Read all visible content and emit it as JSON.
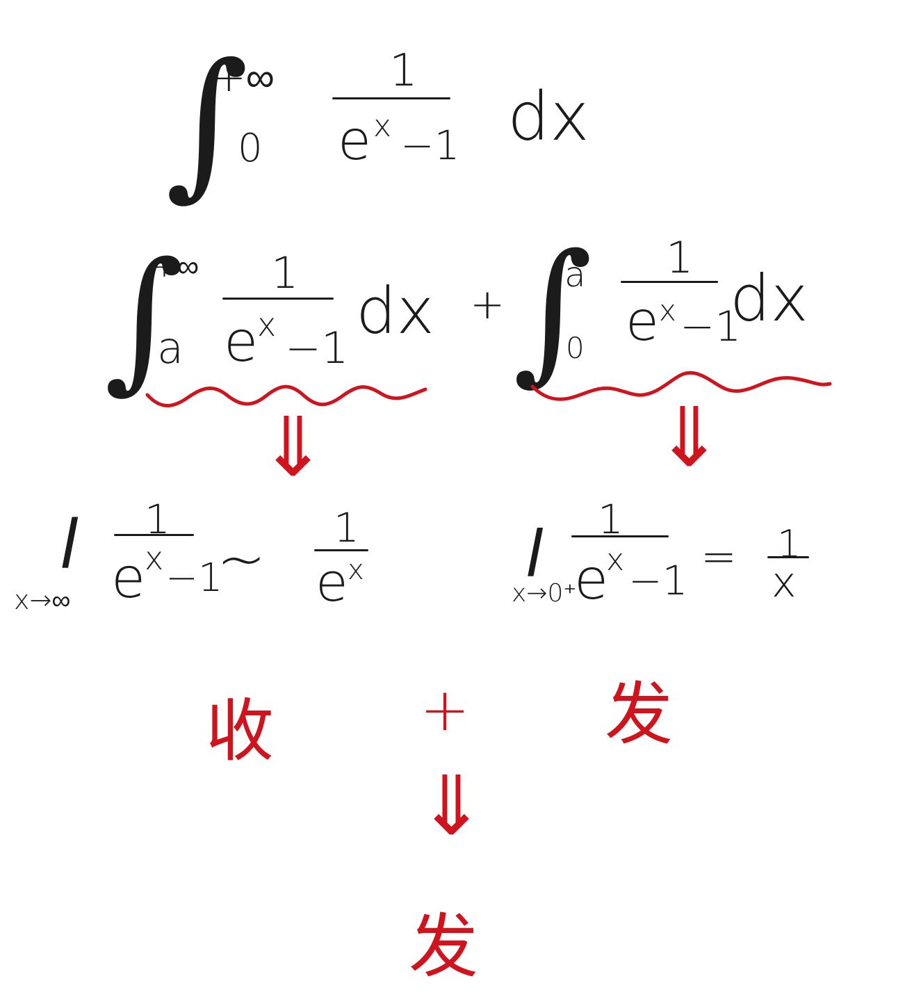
{
  "colors": {
    "ink": "#1b1b1b",
    "annotation": "#d0141e"
  },
  "top_integral": {
    "symbol": "∫",
    "upper": "+∞",
    "lower": "0",
    "numerator": "1",
    "denominator_base": "e",
    "denominator_exp": "x",
    "denominator_tail": "−1",
    "differential": "dx"
  },
  "split": {
    "left": {
      "symbol": "∫",
      "upper": "+∞",
      "lower": "a",
      "numerator": "1",
      "denominator_base": "e",
      "denominator_exp": "x",
      "denominator_tail": "−1",
      "differential": "dx"
    },
    "plus": "+",
    "right": {
      "symbol": "∫",
      "upper": "a",
      "lower": "0",
      "numerator": "1",
      "denominator_base": "e",
      "denominator_exp": "x",
      "denominator_tail": "−1",
      "differential": "dx"
    }
  },
  "arrows": {
    "double_down": "⇓"
  },
  "left_limit": {
    "lim": "l",
    "under": "x→∞",
    "numerator": "1",
    "denominator_base": "e",
    "denominator_exp": "x",
    "denominator_tail": "−1",
    "relation": "~",
    "rhs_numerator": "1",
    "rhs_base": "e",
    "rhs_exp": "x"
  },
  "right_limit": {
    "lim": "l",
    "under": "x→0⁺",
    "numerator": "1",
    "denominator_base": "e",
    "denominator_exp": "x",
    "denominator_tail": "−1",
    "relation": "=",
    "rhs_numerator": "1",
    "rhs_denominator": "x"
  },
  "verdicts": {
    "left": "收",
    "plus": "+",
    "right": "发",
    "final": "发"
  }
}
